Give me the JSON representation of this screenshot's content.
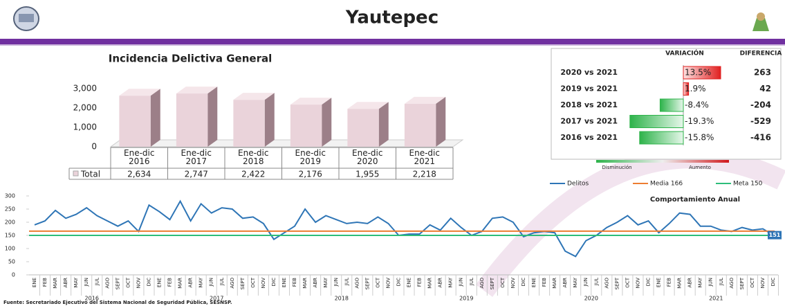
{
  "header": {
    "title": "Yautepec"
  },
  "source": "Fuente: Secretariado Ejecutivo del Sistema Nacional de Seguridad Pública, SESNSP.",
  "chart_data": [
    {
      "type": "bar3d",
      "title": "Incidencia Delictiva General",
      "categories": [
        "Ene-dic\n2016",
        "Ene-dic\n2017",
        "Ene-dic\n2018",
        "Ene-dic\n2019",
        "Ene-dic\n2020",
        "Ene-dic\n2021"
      ],
      "series": [
        {
          "name": "Total",
          "color": "#ead3da",
          "values": [
            2634,
            2747,
            2422,
            2176,
            1955,
            2218
          ],
          "value_labels": [
            "2,634",
            "2,747",
            "2,422",
            "2,176",
            "1,955",
            "2,218"
          ]
        }
      ],
      "ylim": [
        0,
        3000
      ],
      "yticks": [
        0,
        {
          "value": 1000,
          "label": "1,000"
        },
        {
          "value": 2000,
          "label": "2,000"
        },
        {
          "value": 3000,
          "label": "3,000"
        }
      ]
    },
    {
      "type": "hbar",
      "categories": [
        "2020 vs 2021",
        "2019 vs 2021",
        "2018 vs 2021",
        "2017 vs 2021",
        "2016 vs 2021"
      ],
      "series": [
        {
          "name": "VARIACIÓN",
          "values": [
            13.5,
            1.9,
            -8.4,
            -19.3,
            -15.8
          ],
          "value_labels": [
            "13.5%",
            "1.9%",
            "-8.4%",
            "-19.3%",
            "-15.8%"
          ]
        },
        {
          "name": "DIFERENCIA",
          "values": [
            263,
            42,
            -204,
            -529,
            -416
          ]
        }
      ],
      "xlim": [
        -20,
        20
      ],
      "positive_color": "#e02020",
      "negative_color": "#2db34a",
      "scale_labels": [
        "Disminución",
        "Aumento"
      ]
    },
    {
      "type": "line",
      "annotation": "Comportamiento Anual",
      "categories": [
        "ENE",
        "FEB",
        "MAR",
        "ABR",
        "MAY",
        "JUN",
        "JUL",
        "AGO",
        "SEPT",
        "OCT",
        "NOV",
        "DIC",
        "ENE",
        "FEB",
        "MAR",
        "ABR",
        "MAY",
        "JUN",
        "JUL",
        "AGO",
        "SEPT",
        "OCT",
        "NOV",
        "DIC",
        "ENE",
        "FEB",
        "MAR",
        "ABR",
        "MAY",
        "JUN",
        "JUL",
        "AGO",
        "SEPT",
        "OCT",
        "NOV",
        "DIC",
        "ENE",
        "FEB",
        "MAR",
        "ABR",
        "MAY",
        "JUN",
        "JUL",
        "AGO",
        "SEPT",
        "OCT",
        "NOV",
        "DIC",
        "ENE",
        "FEB",
        "MAR",
        "ABR",
        "MAY",
        "JUN",
        "JUL",
        "AGO",
        "SEPT",
        "OCT",
        "NOV",
        "DIC",
        "ENE",
        "FEB",
        "MAR",
        "ABR",
        "MAY",
        "JUN",
        "JUL",
        "AGO",
        "SEPT",
        "OCT",
        "NOV",
        "DIC"
      ],
      "year_groups": [
        "2016",
        "2017",
        "2018",
        "2019",
        "2020",
        "2021"
      ],
      "series": [
        {
          "name": "Delitos",
          "color": "#2e75b6",
          "values": [
            190,
            205,
            245,
            215,
            230,
            255,
            225,
            205,
            185,
            205,
            165,
            265,
            240,
            210,
            280,
            205,
            270,
            235,
            255,
            250,
            215,
            220,
            195,
            135,
            160,
            185,
            250,
            200,
            225,
            210,
            195,
            200,
            195,
            220,
            195,
            150,
            155,
            155,
            190,
            170,
            215,
            180,
            150,
            165,
            215,
            220,
            200,
            145,
            160,
            165,
            160,
            90,
            70,
            130,
            150,
            180,
            200,
            225,
            190,
            205,
            160,
            195,
            235,
            230,
            185,
            185,
            170,
            165,
            180,
            170,
            175,
            151
          ]
        },
        {
          "name": "Media 166",
          "color": "#ed7d31",
          "value": 166
        },
        {
          "name": "Meta 150",
          "color": "#2dbd7a",
          "value": 150
        }
      ],
      "ylim": [
        0,
        300
      ],
      "yticks": [
        0,
        50,
        100,
        150,
        200,
        250,
        300
      ],
      "label_last": true
    }
  ]
}
